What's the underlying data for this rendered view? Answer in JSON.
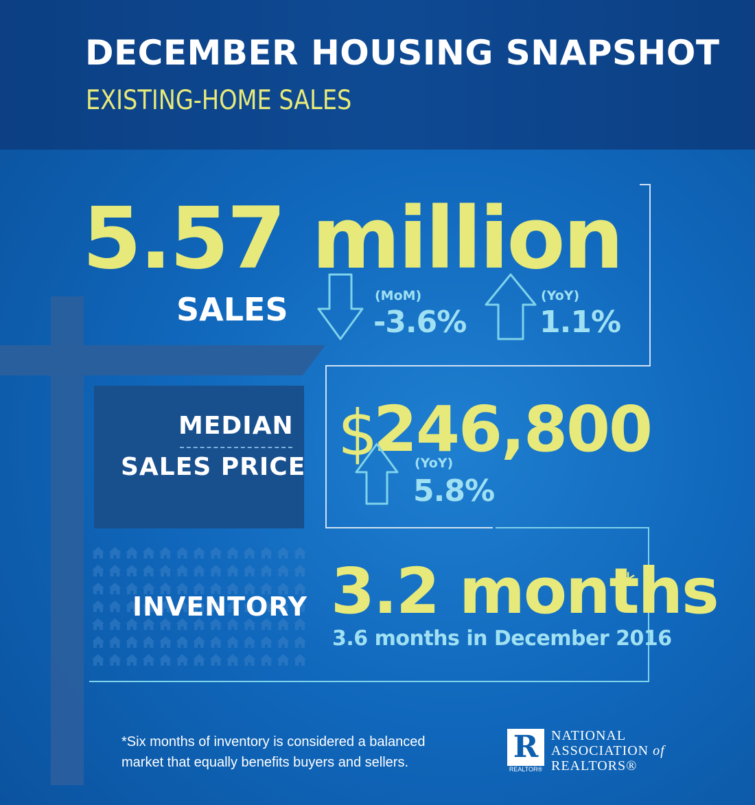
{
  "header": {
    "title": "DECEMBER HOUSING SNAPSHOT",
    "subtitle": "EXISTING-HOME SALES"
  },
  "sales": {
    "value": "5.57 million",
    "label": "SALES",
    "mom_tag": "(MoM)",
    "mom_value": "-3.6%",
    "yoy_tag": "(YoY)",
    "yoy_value": "1.1%"
  },
  "price": {
    "label_line1": "MEDIAN",
    "label_line2": "SALES PRICE",
    "currency": "$",
    "value": "246,800",
    "yoy_tag": "(YoY)",
    "yoy_value": "5.8%"
  },
  "inventory": {
    "label": "INVENTORY",
    "value": "3.2 months",
    "asterisk": "*",
    "previous": "3.6 months in December 2016"
  },
  "footnote": {
    "line1": "*Six months of inventory is considered a balanced",
    "line2": "market that equally benefits buyers and sellers."
  },
  "logo": {
    "mark": "R",
    "mark_sub": "REALTOR®",
    "org_line1": "NATIONAL",
    "org_line2_a": "ASSOCIATION",
    "org_line2_b": "of",
    "org_line3": "REALTORS®"
  },
  "colors": {
    "background": "#0d5fae",
    "header": "#0e4a93",
    "accent_yellow": "#e7ea7a",
    "accent_cyan": "#9fe0f2",
    "white": "#ffffff"
  },
  "icons": [
    "arrow-down-icon",
    "arrow-up-icon",
    "house-icon",
    "realtor-logo-icon"
  ]
}
